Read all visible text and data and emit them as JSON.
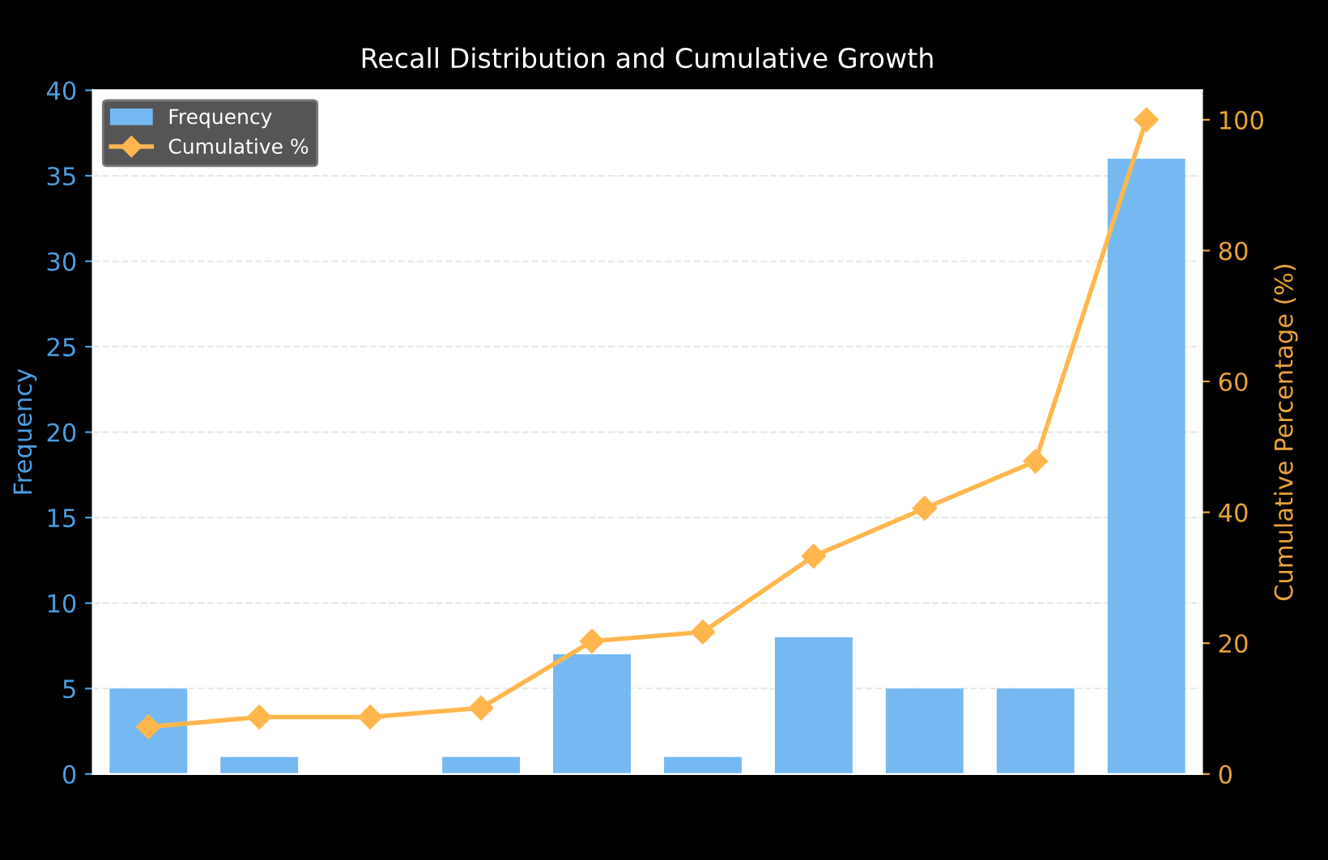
{
  "chart_data": {
    "type": "bar",
    "title": "Recall Distribution and Cumulative Growth",
    "ylabel": "Frequency",
    "y2label": "Cumulative Percentage (%)",
    "categories": [
      null,
      null,
      null,
      null,
      null,
      null,
      null,
      null,
      null,
      null
    ],
    "series": [
      {
        "name": "Frequency",
        "color": "#74b9f2",
        "values": [
          5,
          1,
          0,
          1,
          7,
          1,
          8,
          5,
          5,
          36
        ]
      },
      {
        "name": "Cumulative %",
        "type": "line",
        "axis": "y2",
        "color": "#ffb74d",
        "values": [
          7.2,
          8.7,
          8.7,
          10.1,
          20.3,
          21.7,
          33.3,
          40.6,
          47.8,
          100
        ]
      }
    ],
    "ylim": [
      0,
      40
    ],
    "yticks": [
      0,
      5,
      10,
      15,
      20,
      25,
      30,
      35,
      40
    ],
    "y2lim": [
      0,
      104.5
    ],
    "y2ticks": [
      0,
      20,
      40,
      60,
      80,
      100
    ],
    "grid": "y",
    "legend": "top left",
    "marker": "diamond",
    "line_style": "solid",
    "tick_labels": "y"
  }
}
